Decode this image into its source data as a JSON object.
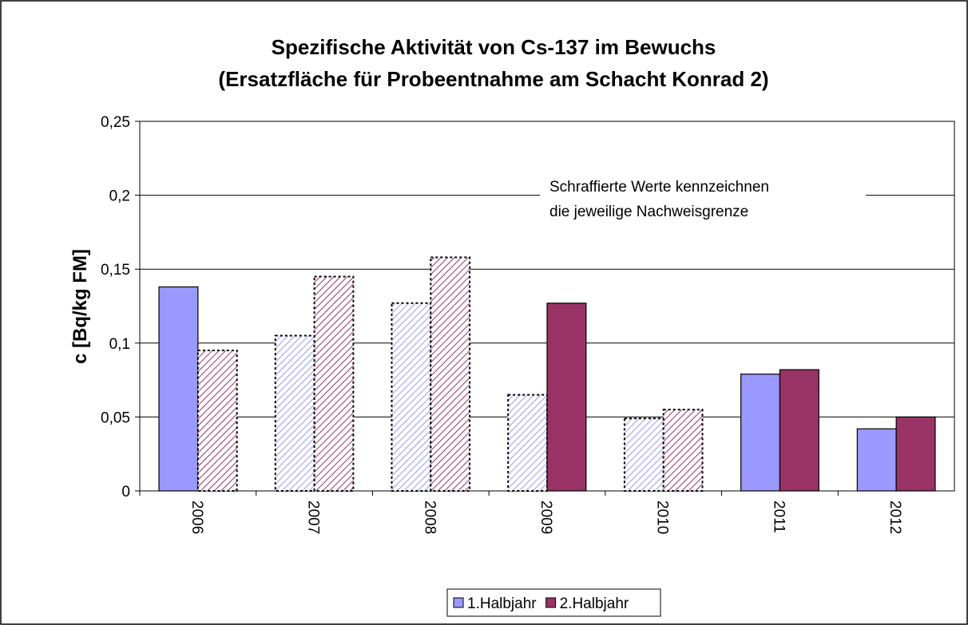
{
  "chart_data": {
    "type": "bar",
    "title": [
      "Spezifische Aktivität von Cs-137 im Bewuchs",
      "(Ersatzfläche für Probeentnahme am Schacht Konrad 2)"
    ],
    "y_label": "c [Bq/kg FM]",
    "annotation": [
      "Schraffierte Werte kennzeichnen",
      "die jeweilige Nachweisgrenze"
    ],
    "categories": [
      "2006",
      "2007",
      "2008",
      "2009",
      "2010",
      "2011",
      "2012"
    ],
    "series": [
      {
        "name": "1.Halbjahr",
        "color": "#9999ff",
        "values": [
          0.138,
          0.105,
          0.127,
          0.065,
          0.049,
          0.079,
          0.042
        ],
        "hatched": [
          false,
          true,
          true,
          true,
          true,
          false,
          false
        ]
      },
      {
        "name": "2.Halbjahr",
        "color": "#993366",
        "values": [
          0.095,
          0.145,
          0.158,
          0.127,
          0.055,
          0.082,
          0.05
        ],
        "hatched": [
          true,
          true,
          true,
          false,
          true,
          false,
          false
        ]
      }
    ],
    "ylim": [
      0,
      0.25
    ],
    "yticks": [
      0,
      {
        "value": 0.05,
        "label": "0,05"
      },
      {
        "value": 0.1,
        "label": "0,1"
      },
      {
        "value": 0.15,
        "label": "0,15"
      },
      {
        "value": 0.2,
        "label": "0,2"
      },
      {
        "value": 0.25,
        "label": "0,25"
      }
    ],
    "grid": true,
    "legend": "bottom"
  }
}
